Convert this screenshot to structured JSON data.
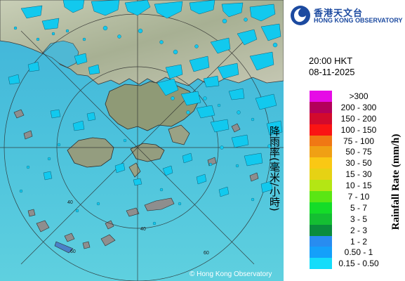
{
  "header": {
    "org_chinese": "香港天文台",
    "org_english": "HONG KONG OBSERVATORY",
    "logo_icon": "hko-logo-icon"
  },
  "observation": {
    "time": "20:00 HKT",
    "date": "08-11-2025"
  },
  "legend": {
    "title_chinese": "降雨率(毫米/小時)",
    "title_english": "Rainfall Rate (mm/h)",
    "items": [
      {
        "label": ">300",
        "color": "#e60ce6"
      },
      {
        "label": "200 - 300",
        "color": "#b4005a"
      },
      {
        "label": "150 - 200",
        "color": "#d20a2d"
      },
      {
        "label": "100 - 150",
        "color": "#fa1414"
      },
      {
        "label": "75 - 100",
        "color": "#f07814"
      },
      {
        "label": "50 - 75",
        "color": "#f0a014"
      },
      {
        "label": "30 - 50",
        "color": "#fac814"
      },
      {
        "label": "15 - 30",
        "color": "#e6d214"
      },
      {
        "label": "10 - 15",
        "color": "#b4e614"
      },
      {
        "label": "7 - 10",
        "color": "#5ae614"
      },
      {
        "label": "5 - 7",
        "color": "#14dc28"
      },
      {
        "label": "3 - 5",
        "color": "#14be32"
      },
      {
        "label": "2 - 3",
        "color": "#0a8c3c"
      },
      {
        "label": "1 - 2",
        "color": "#288cf0"
      },
      {
        "label": "0.50 - 1",
        "color": "#14a0fa"
      },
      {
        "label": "0.15 - 0.50",
        "color": "#14dcfa"
      }
    ]
  },
  "map": {
    "range_rings": [
      "40",
      "40",
      "60",
      "60"
    ],
    "copyright": "© Hong Kong Observatory"
  }
}
